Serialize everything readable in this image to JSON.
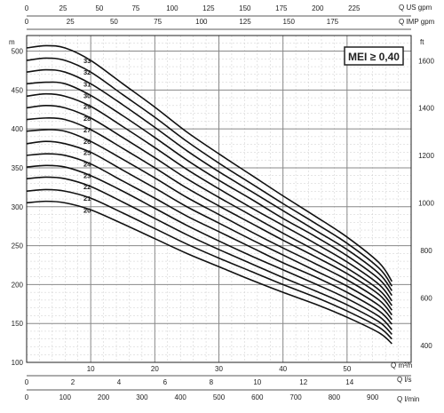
{
  "chart_data": {
    "type": "line",
    "title": "",
    "badge": "MEI ≥ 0,40",
    "y_left": {
      "unit": "m",
      "ylim": [
        100,
        520
      ],
      "ticks": [
        100,
        150,
        200,
        250,
        300,
        350,
        400,
        450,
        500
      ]
    },
    "y_right": {
      "unit": "ft",
      "ticks": [
        400,
        600,
        800,
        1000,
        1200,
        1400,
        1600
      ]
    },
    "x_axes": [
      {
        "name": "Q m³/h",
        "label": "Q m³/h",
        "range": [
          0,
          60
        ],
        "ticks": [
          10,
          20,
          30,
          40,
          50
        ]
      },
      {
        "name": "Q l/s",
        "label": "Q l/s",
        "range": [
          0,
          16.667
        ],
        "ticks": [
          0,
          2,
          4,
          6,
          8,
          10,
          12,
          14
        ]
      },
      {
        "name": "Q l/min",
        "label": "Q l/min",
        "range": [
          0,
          1000
        ],
        "ticks": [
          0,
          100,
          200,
          300,
          400,
          500,
          600,
          700,
          800,
          900
        ]
      },
      {
        "name": "Q US gpm",
        "label": "Q US gpm",
        "range": [
          0,
          264.2
        ],
        "ticks": [
          0,
          25,
          50,
          75,
          100,
          125,
          150,
          175,
          200,
          225
        ]
      },
      {
        "name": "Q IMP gpm",
        "label": "Q IMP gpm",
        "range": [
          0,
          220
        ],
        "ticks": [
          0,
          25,
          50,
          75,
          100,
          125,
          150,
          175
        ]
      }
    ],
    "stage_labels": [
      "20",
      "21",
      "22",
      "23",
      "24",
      "25",
      "26",
      "27",
      "28",
      "29",
      "30",
      "31",
      "32",
      "33"
    ],
    "series": [
      {
        "name": "20",
        "x": [
          0,
          3,
          6,
          10,
          15,
          20,
          25,
          30,
          35,
          40,
          45,
          50,
          55,
          57
        ],
        "y": [
          305,
          307,
          305,
          296,
          278,
          259,
          240,
          223,
          206,
          190,
          175,
          158,
          138,
          124
        ]
      },
      {
        "name": "21",
        "x": [
          0,
          3,
          6,
          10,
          15,
          20,
          25,
          30,
          35,
          40,
          45,
          50,
          55,
          57
        ],
        "y": [
          320,
          322,
          320,
          311,
          292,
          272,
          252,
          234,
          217,
          200,
          184,
          166,
          145,
          130
        ]
      },
      {
        "name": "22",
        "x": [
          0,
          3,
          6,
          10,
          15,
          20,
          25,
          30,
          35,
          40,
          45,
          50,
          55,
          57
        ],
        "y": [
          336,
          338,
          336,
          326,
          306,
          285,
          264,
          245,
          227,
          209,
          192,
          174,
          152,
          136
        ]
      },
      {
        "name": "23",
        "x": [
          0,
          3,
          6,
          10,
          15,
          20,
          25,
          30,
          35,
          40,
          45,
          50,
          55,
          57
        ],
        "y": [
          351,
          353,
          351,
          340,
          320,
          298,
          276,
          256,
          237,
          219,
          201,
          182,
          159,
          142
        ]
      },
      {
        "name": "24",
        "x": [
          0,
          3,
          6,
          10,
          15,
          20,
          25,
          30,
          35,
          40,
          45,
          50,
          55,
          57
        ],
        "y": [
          366,
          368,
          366,
          355,
          333,
          311,
          288,
          268,
          248,
          228,
          210,
          190,
          166,
          149
        ]
      },
      {
        "name": "25",
        "x": [
          0,
          3,
          6,
          10,
          15,
          20,
          25,
          30,
          35,
          40,
          45,
          50,
          55,
          57
        ],
        "y": [
          381,
          384,
          381,
          370,
          347,
          324,
          300,
          279,
          258,
          238,
          218,
          198,
          173,
          155
        ]
      },
      {
        "name": "26",
        "x": [
          0,
          3,
          6,
          10,
          15,
          20,
          25,
          30,
          35,
          40,
          45,
          50,
          55,
          57
        ],
        "y": [
          397,
          399,
          397,
          384,
          361,
          337,
          312,
          290,
          268,
          247,
          227,
          206,
          180,
          161
        ]
      },
      {
        "name": "27",
        "x": [
          0,
          3,
          6,
          10,
          15,
          20,
          25,
          30,
          35,
          40,
          45,
          50,
          55,
          57
        ],
        "y": [
          412,
          414,
          412,
          399,
          375,
          350,
          324,
          301,
          279,
          257,
          236,
          214,
          187,
          167
        ]
      },
      {
        "name": "28",
        "x": [
          0,
          3,
          6,
          10,
          15,
          20,
          25,
          30,
          35,
          40,
          45,
          50,
          55,
          57
        ],
        "y": [
          427,
          430,
          427,
          414,
          389,
          363,
          336,
          312,
          289,
          266,
          244,
          221,
          193,
          173
        ]
      },
      {
        "name": "29",
        "x": [
          0,
          3,
          6,
          10,
          15,
          20,
          25,
          30,
          35,
          40,
          45,
          50,
          55,
          57
        ],
        "y": [
          442,
          445,
          442,
          429,
          403,
          376,
          348,
          323,
          299,
          276,
          253,
          229,
          200,
          179
        ]
      },
      {
        "name": "30",
        "x": [
          0,
          3,
          6,
          10,
          15,
          20,
          25,
          30,
          35,
          40,
          45,
          50,
          55,
          57
        ],
        "y": [
          458,
          460,
          458,
          443,
          417,
          389,
          360,
          334,
          310,
          285,
          262,
          237,
          207,
          186
        ]
      },
      {
        "name": "31",
        "x": [
          0,
          3,
          6,
          10,
          15,
          20,
          25,
          30,
          35,
          40,
          45,
          50,
          55,
          57
        ],
        "y": [
          473,
          476,
          473,
          458,
          431,
          402,
          372,
          345,
          320,
          295,
          270,
          245,
          214,
          192
        ]
      },
      {
        "name": "32",
        "x": [
          0,
          3,
          6,
          10,
          15,
          20,
          25,
          30,
          35,
          40,
          45,
          50,
          55,
          57
        ],
        "y": [
          488,
          491,
          488,
          473,
          444,
          415,
          384,
          356,
          330,
          304,
          279,
          253,
          221,
          198
        ]
      },
      {
        "name": "33",
        "x": [
          0,
          3,
          6,
          10,
          15,
          20,
          25,
          30,
          35,
          40,
          45,
          50,
          55,
          57
        ],
        "y": [
          504,
          507,
          504,
          488,
          458,
          428,
          396,
          368,
          341,
          314,
          288,
          261,
          228,
          204
        ]
      }
    ],
    "grid": true
  }
}
